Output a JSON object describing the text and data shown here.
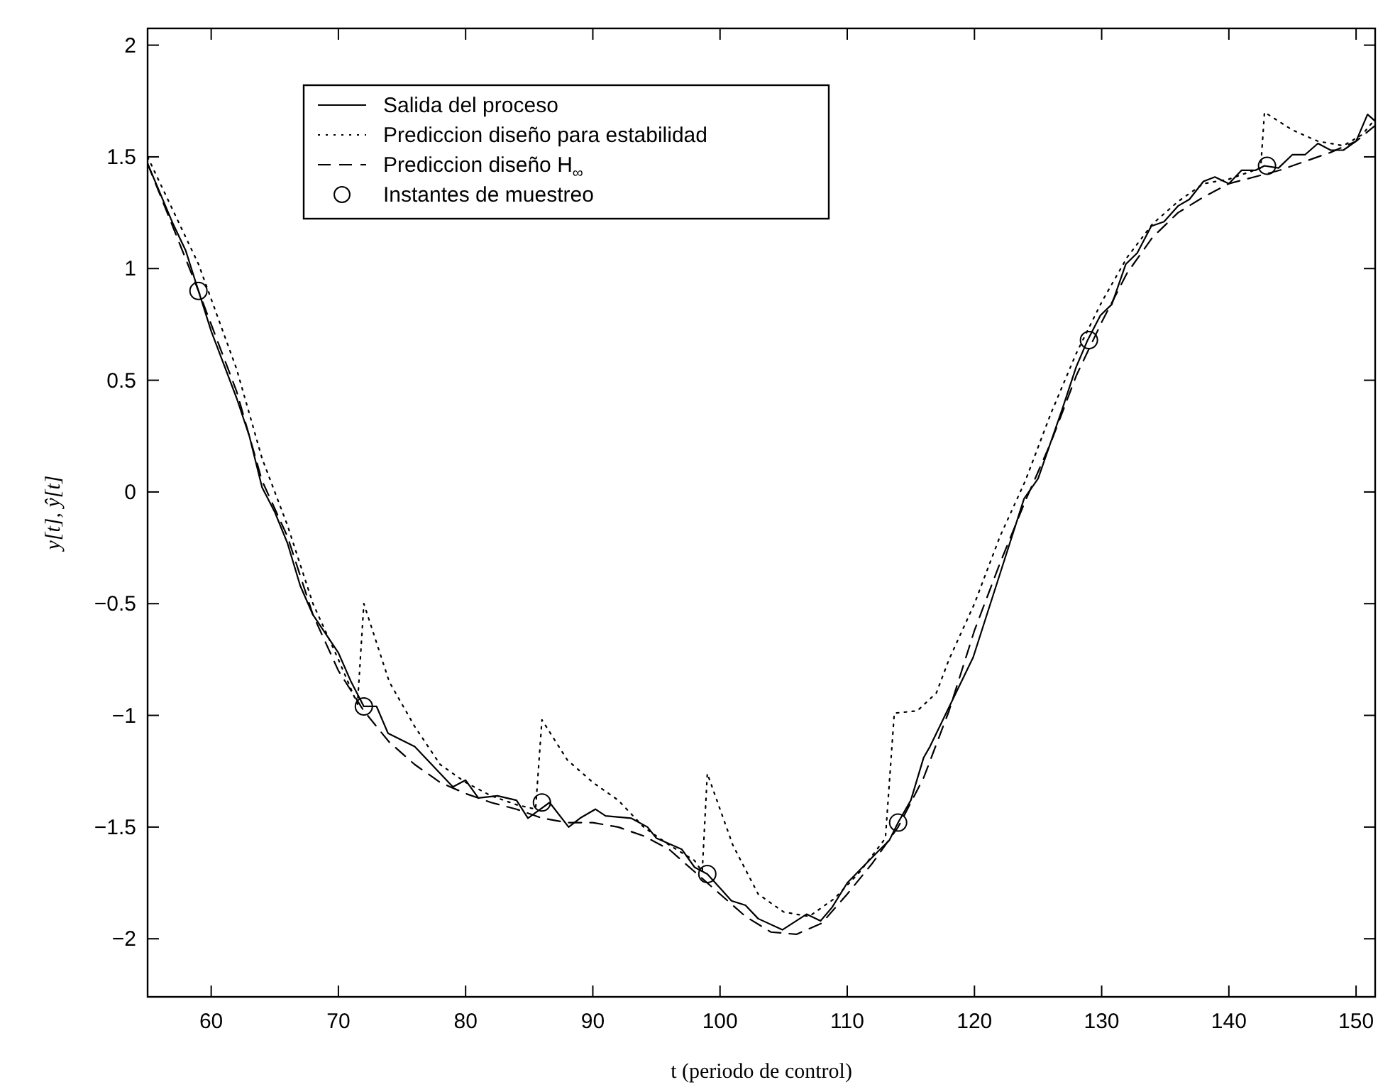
{
  "chart_data": {
    "type": "line",
    "xlabel": "t (periodo de control)",
    "ylabel": "y[t], ŷ[t]",
    "xlim": [
      55,
      151.5
    ],
    "ylim": [
      -2.26,
      2.075
    ],
    "xticks": [
      60,
      70,
      80,
      90,
      100,
      110,
      120,
      130,
      140,
      150
    ],
    "yticks": [
      {
        "value": -2,
        "label": "−2"
      },
      {
        "value": -1.5,
        "label": "−1.5"
      },
      {
        "value": -1,
        "label": "−1"
      },
      {
        "value": -0.5,
        "label": "−0.5"
      },
      0,
      0.5,
      1,
      1.5,
      2
    ],
    "legend": "top left",
    "marker": "none",
    "series": [
      {
        "name": "Salida del proceso",
        "color": "#000000",
        "line_style": "solid",
        "x": [
          55,
          57,
          58,
          59,
          60,
          61,
          62,
          63,
          64,
          65,
          66,
          67,
          68,
          70,
          71,
          72,
          73,
          73.9,
          76,
          79,
          80,
          81,
          82.5,
          84,
          84.9,
          86.6,
          88.1,
          89,
          90.2,
          91,
          93,
          94.3,
          95,
          97,
          98,
          99,
          100.9,
          102,
          103,
          104.9,
          106.8,
          107.9,
          108.8,
          110,
          112.4,
          113.3,
          114,
          115,
          116,
          116.5,
          119.9,
          122.1,
          123.9,
          125,
          126.9,
          128,
          128.9,
          129.9,
          130.8,
          131.9,
          132.8,
          133.9,
          134.9,
          136,
          136.9,
          138,
          138.9,
          140,
          141,
          142.1,
          142.8,
          143.9,
          145,
          146,
          147,
          148,
          149,
          150,
          150.9,
          151.5
        ],
        "values": [
          1.47,
          1.2,
          1.08,
          0.9,
          0.72,
          0.57,
          0.42,
          0.25,
          0.02,
          -0.09,
          -0.23,
          -0.42,
          -0.55,
          -0.72,
          -0.85,
          -0.96,
          -0.96,
          -1.08,
          -1.14,
          -1.32,
          -1.29,
          -1.37,
          -1.36,
          -1.38,
          -1.46,
          -1.39,
          -1.5,
          -1.46,
          -1.42,
          -1.45,
          -1.46,
          -1.5,
          -1.55,
          -1.6,
          -1.68,
          -1.71,
          -1.83,
          -1.85,
          -1.91,
          -1.96,
          -1.89,
          -1.92,
          -1.86,
          -1.75,
          -1.61,
          -1.56,
          -1.48,
          -1.38,
          -1.19,
          -1.14,
          -0.74,
          -0.35,
          -0.03,
          0.06,
          0.37,
          0.56,
          0.68,
          0.79,
          0.84,
          1.02,
          1.07,
          1.19,
          1.21,
          1.28,
          1.31,
          1.39,
          1.41,
          1.38,
          1.44,
          1.44,
          1.46,
          1.45,
          1.51,
          1.51,
          1.56,
          1.53,
          1.53,
          1.57,
          1.69,
          1.66
        ]
      },
      {
        "name": "Prediccion diseño para estabilidad",
        "color": "#000000",
        "line_style": "dotted",
        "x": [
          55,
          59,
          62,
          64,
          66,
          68,
          70,
          71.5,
          72,
          74,
          76,
          78,
          80,
          82,
          84,
          85.5,
          86,
          88,
          90,
          92,
          94,
          96,
          98,
          98.6,
          99,
          101,
          103,
          105,
          107,
          109,
          111,
          113,
          113.7,
          115.5,
          117,
          118,
          120,
          122,
          124,
          126,
          128,
          130,
          132,
          134,
          136,
          138,
          140,
          142.5,
          142.8,
          145,
          147,
          149,
          150.5,
          151.5
        ],
        "values": [
          1.5,
          1.02,
          0.55,
          0.15,
          -0.15,
          -0.5,
          -0.75,
          -0.95,
          -0.5,
          -0.85,
          -1.05,
          -1.22,
          -1.3,
          -1.36,
          -1.4,
          -1.42,
          -1.02,
          -1.2,
          -1.3,
          -1.38,
          -1.5,
          -1.58,
          -1.65,
          -1.7,
          -1.26,
          -1.58,
          -1.8,
          -1.88,
          -1.9,
          -1.82,
          -1.7,
          -1.55,
          -0.99,
          -0.98,
          -0.9,
          -0.75,
          -0.5,
          -0.2,
          0.05,
          0.35,
          0.62,
          0.85,
          1.05,
          1.2,
          1.3,
          1.38,
          1.4,
          1.45,
          1.7,
          1.62,
          1.57,
          1.55,
          1.6,
          1.67
        ]
      },
      {
        "name": "Prediccion diseño H$_{∞}$",
        "color": "#000000",
        "line_style": "dashed",
        "x": [
          55,
          59,
          62,
          64,
          66,
          68,
          70,
          72,
          74,
          76,
          78,
          80,
          82,
          84,
          86,
          88,
          90,
          92,
          94,
          96,
          98,
          100,
          102,
          104,
          106,
          108,
          110,
          112,
          114,
          116,
          118,
          120,
          122,
          124,
          126,
          128,
          130,
          132,
          134,
          136,
          138,
          140,
          142,
          144,
          146,
          148,
          150,
          151.5
        ],
        "values": [
          1.47,
          0.9,
          0.45,
          0.05,
          -0.2,
          -0.55,
          -0.8,
          -0.98,
          -1.12,
          -1.22,
          -1.3,
          -1.35,
          -1.39,
          -1.42,
          -1.46,
          -1.48,
          -1.48,
          -1.5,
          -1.54,
          -1.6,
          -1.7,
          -1.8,
          -1.9,
          -1.97,
          -1.98,
          -1.93,
          -1.8,
          -1.66,
          -1.5,
          -1.28,
          -0.98,
          -0.62,
          -0.32,
          -0.04,
          0.22,
          0.52,
          0.76,
          0.98,
          1.14,
          1.25,
          1.32,
          1.38,
          1.41,
          1.44,
          1.48,
          1.52,
          1.57,
          1.64
        ]
      },
      {
        "name": "Instantes de muestreo",
        "type": "scatter",
        "marker": "circle",
        "color": "#000000",
        "x": [
          59,
          72,
          86,
          99,
          114,
          129,
          143
        ],
        "values": [
          0.9,
          -0.96,
          -1.39,
          -1.71,
          -1.48,
          0.68,
          1.46
        ]
      }
    ]
  }
}
